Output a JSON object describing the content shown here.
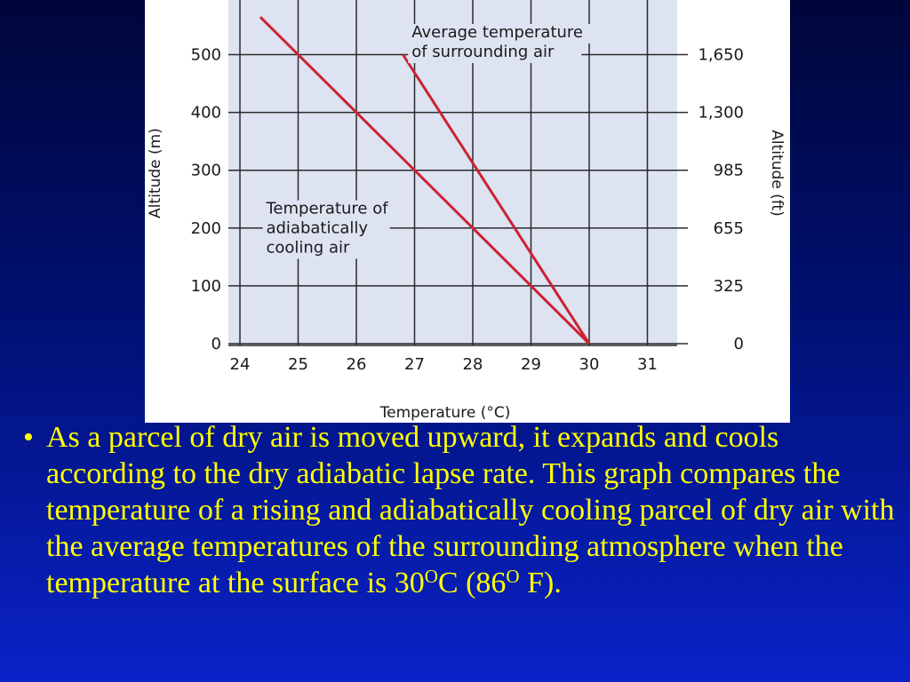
{
  "slide": {
    "bullet_mark": "•",
    "bullet_pre": "As a parcel of dry air is moved upward, it expands and cools according to the dry adiabatic lapse rate. This graph compares the temperature of a rising and adiabatically cooling parcel of dry air with the average temperatures of the surrounding atmosphere when the temperature at the surface is 30",
    "deg_sup_1": "O",
    "bullet_mid": "C (86",
    "deg_sup_2": "O",
    "bullet_end": " F)."
  },
  "chart_data": {
    "type": "line",
    "title": "",
    "xlabel": "Temperature (°C)",
    "ylabel": "Altitude (m)",
    "y2label": "Altitude (ft)",
    "xlim": [
      24,
      31.3
    ],
    "ylim": [
      0,
      600
    ],
    "x_ticks": [
      24,
      25,
      26,
      27,
      28,
      29,
      30,
      31
    ],
    "y_ticks": [
      0,
      100,
      200,
      300,
      400,
      500
    ],
    "y2_ticks": [
      {
        "value": 0,
        "label": "0"
      },
      {
        "value": 100,
        "label": "325"
      },
      {
        "value": 200,
        "label": "655"
      },
      {
        "value": 300,
        "label": "985"
      },
      {
        "value": 400,
        "label": "1,300"
      },
      {
        "value": 500,
        "label": "1,650"
      }
    ],
    "grid": true,
    "line_color": "#cc2233",
    "background": "#dde3f1",
    "series": [
      {
        "points": [
          [
            30,
            0
          ],
          [
            24.35,
            565
          ]
        ]
      },
      {
        "points": [
          [
            30,
            0
          ],
          [
            26.8,
            500
          ]
        ]
      }
    ],
    "annotations": [
      {
        "lines": [
          "Average temperature",
          "of surrounding air"
        ],
        "x": 26.95,
        "y": 530
      },
      {
        "lines": [
          "Temperature of",
          "adiabatically",
          "cooling air"
        ],
        "x": 24.45,
        "y": 225
      }
    ]
  }
}
